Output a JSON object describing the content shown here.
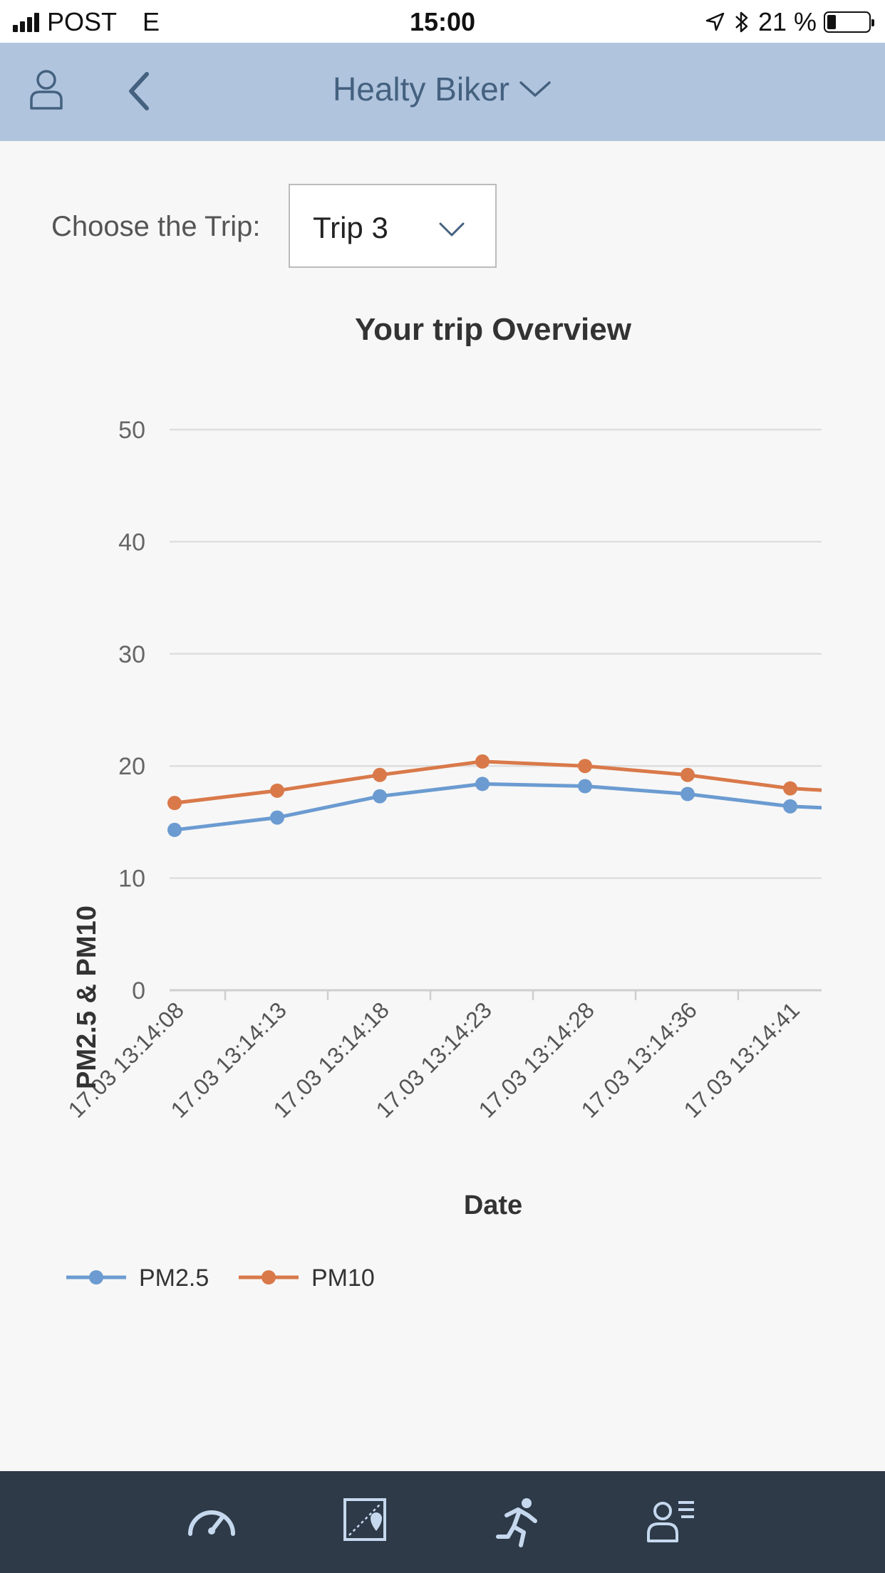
{
  "status_bar": {
    "carrier": "POST",
    "network": "E",
    "time": "15:00",
    "battery": "21 %",
    "battery_level": 0.21
  },
  "header": {
    "title": "Healty Biker",
    "icons": {
      "left": "user-icon",
      "back": "chevron-left-icon",
      "title": "chevron-down-icon"
    }
  },
  "trip_selector": {
    "label": "Choose the Trip:",
    "selected": "Trip 3"
  },
  "chart_data": {
    "type": "line",
    "title": "Your trip Overview",
    "xlabel": "Date",
    "ylabel": "PM2.5 & PM10",
    "ylim": [
      0,
      50
    ],
    "yticks": [
      0,
      10,
      20,
      30,
      40,
      50
    ],
    "tick_labels": [
      "17.03 13:14:08",
      "17.03 13:14:13",
      "17.03 13:14:18",
      "17.03 13:14:23",
      "17.03 13:14:28",
      "17.03 13:14:36",
      "17.03 13:14:41"
    ],
    "grid": true,
    "legend": "bottom-left",
    "series": [
      {
        "name": "PM2.5",
        "color": "#6b9bd1",
        "values": [
          14.3,
          15.4,
          17.3,
          18.4,
          18.2,
          17.5,
          16.4,
          16.0
        ]
      },
      {
        "name": "PM10",
        "color": "#d9794a",
        "values": [
          16.7,
          17.8,
          19.2,
          20.4,
          20.0,
          19.2,
          18.0,
          17.5
        ]
      }
    ]
  },
  "tab_bar": {
    "icons": [
      "speedometer-icon",
      "map-icon",
      "runner-icon",
      "profile-list-icon"
    ]
  }
}
